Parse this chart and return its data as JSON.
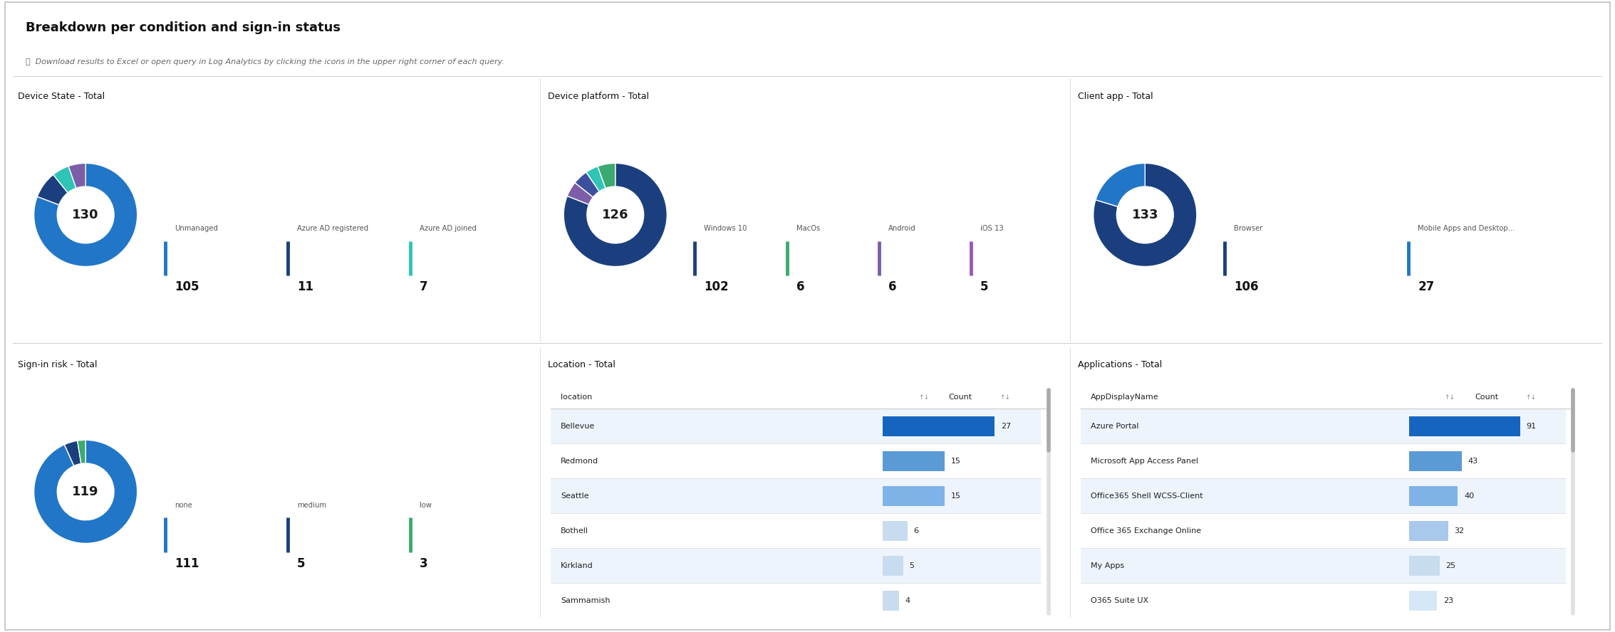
{
  "title": "Breakdown per condition and sign-in status",
  "subtitle": "Download results to Excel or open query in Log Analytics by clicking the icons in the upper right corner of each query.",
  "background_color": "#ffffff",
  "device_state": {
    "section_title": "Device State - Total",
    "total": 130,
    "slices": [
      105,
      11,
      7,
      7
    ],
    "colors": [
      "#2176C7",
      "#1B3F7E",
      "#2EC4B6",
      "#7B5EA7"
    ],
    "legend": [
      {
        "label": "Unmanaged",
        "value": "105",
        "color": "#2176C7"
      },
      {
        "label": "Azure AD registered",
        "value": "11",
        "color": "#1B3F7E"
      },
      {
        "label": "Azure AD joined",
        "value": "7",
        "color": "#2EC4B6"
      }
    ]
  },
  "device_platform": {
    "section_title": "Device platform - Total",
    "total": 126,
    "slices": [
      102,
      6,
      6,
      5,
      7
    ],
    "colors": [
      "#1B3F7E",
      "#7B5EA7",
      "#3D50A0",
      "#2EC4B6",
      "#3BAA70"
    ],
    "legend": [
      {
        "label": "Windows 10",
        "value": "102",
        "color": "#1B3F7E"
      },
      {
        "label": "MacOs",
        "value": "6",
        "color": "#3BAA70"
      },
      {
        "label": "Android",
        "value": "6",
        "color": "#7B5EA7"
      },
      {
        "label": "iOS 13",
        "value": "5",
        "color": "#9B59B6"
      }
    ]
  },
  "client_app": {
    "section_title": "Client app - Total",
    "total": 133,
    "slices": [
      106,
      27
    ],
    "colors": [
      "#1B3F7E",
      "#2176C7"
    ],
    "legend": [
      {
        "label": "Browser",
        "value": "106",
        "color": "#1B3F7E"
      },
      {
        "label": "Mobile Apps and Desktop...",
        "value": "27",
        "color": "#2176C7"
      }
    ]
  },
  "signin_risk": {
    "section_title": "Sign-in risk - Total",
    "total": 119,
    "slices": [
      111,
      5,
      3
    ],
    "colors": [
      "#2176C7",
      "#1B3F7E",
      "#3BAA70"
    ],
    "legend": [
      {
        "label": "none",
        "value": "111",
        "color": "#2176C7"
      },
      {
        "label": "medium",
        "value": "5",
        "color": "#1B3F7E"
      },
      {
        "label": "low",
        "value": "3",
        "color": "#3BAA70"
      }
    ]
  },
  "location": {
    "section_title": "Location - Total",
    "col1": "location",
    "col2": "Count",
    "rows": [
      {
        "name": "Bellevue",
        "value": 27,
        "bar_color": "#1565C0"
      },
      {
        "name": "Redmond",
        "value": 15,
        "bar_color": "#5B9BD5"
      },
      {
        "name": "Seattle",
        "value": 15,
        "bar_color": "#7FB3E8"
      },
      {
        "name": "Bothell",
        "value": 6,
        "bar_color": "#C8DCF0"
      },
      {
        "name": "Kirkland",
        "value": 5,
        "bar_color": "#C8DCF0"
      },
      {
        "name": "Sammamish",
        "value": 4,
        "bar_color": "#C8DCF0"
      }
    ]
  },
  "applications": {
    "section_title": "Applications - Total",
    "col1": "AppDisplayName",
    "col2": "Count",
    "rows": [
      {
        "name": "Azure Portal",
        "value": 91,
        "bar_color": "#1565C0"
      },
      {
        "name": "Microsoft App Access Panel",
        "value": 43,
        "bar_color": "#5B9BD5"
      },
      {
        "name": "Office365 Shell WCSS-Client",
        "value": 40,
        "bar_color": "#7FB3E8"
      },
      {
        "name": "Office 365 Exchange Online",
        "value": 32,
        "bar_color": "#A8C8EC"
      },
      {
        "name": "My Apps",
        "value": 25,
        "bar_color": "#C8DCF0"
      },
      {
        "name": "O365 Suite UX",
        "value": 23,
        "bar_color": "#D6E8F7"
      }
    ]
  }
}
